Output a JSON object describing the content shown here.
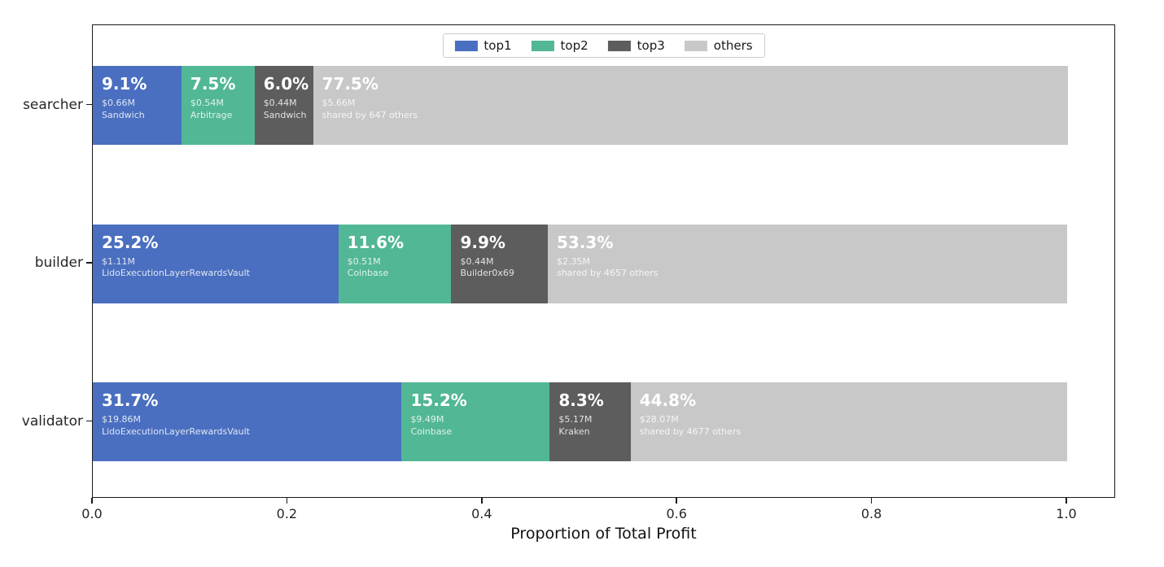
{
  "figure": {
    "xlabel": "Proportion of Total Profit"
  },
  "legend": {
    "items": [
      {
        "label": "top1",
        "color": "#4a6fc0"
      },
      {
        "label": "top2",
        "color": "#52b794"
      },
      {
        "label": "top3",
        "color": "#5d5d5d"
      },
      {
        "label": "others",
        "color": "#c8c8c8"
      }
    ]
  },
  "chart_data": {
    "type": "bar",
    "orientation": "horizontal",
    "stacked": true,
    "title": "",
    "xlabel": "Proportion of Total Profit",
    "xlim": [
      0,
      1.05
    ],
    "grid": false,
    "legend_position": "upper center",
    "x_ticks": [
      0,
      0.2,
      0.4,
      0.6,
      0.8,
      1.0
    ],
    "x_tick_labels": [
      "0.0",
      "0.2",
      "0.4",
      "0.6",
      "0.8",
      "1.0"
    ],
    "categories": [
      "searcher",
      "builder",
      "validator"
    ],
    "series_colors": {
      "top1": "#4a6fc0",
      "top2": "#52b794",
      "top3": "#5d5d5d",
      "others": "#c8c8c8"
    },
    "rows": [
      {
        "category": "searcher",
        "segments": [
          {
            "series": "top1",
            "value": 0.091,
            "percent": "9.1%",
            "amount": "$0.66M",
            "entity": "Sandwich"
          },
          {
            "series": "top2",
            "value": 0.075,
            "percent": "7.5%",
            "amount": "$0.54M",
            "entity": "Arbitrage"
          },
          {
            "series": "top3",
            "value": 0.06,
            "percent": "6.0%",
            "amount": "$0.44M",
            "entity": "Sandwich"
          },
          {
            "series": "others",
            "value": 0.775,
            "percent": "77.5%",
            "amount": "$5.66M",
            "entity": "shared by 647 others"
          }
        ]
      },
      {
        "category": "builder",
        "segments": [
          {
            "series": "top1",
            "value": 0.252,
            "percent": "25.2%",
            "amount": "$1.11M",
            "entity": "LidoExecutionLayerRewardsVault"
          },
          {
            "series": "top2",
            "value": 0.116,
            "percent": "11.6%",
            "amount": "$0.51M",
            "entity": "Coinbase"
          },
          {
            "series": "top3",
            "value": 0.099,
            "percent": "9.9%",
            "amount": "$0.44M",
            "entity": "Builder0x69"
          },
          {
            "series": "others",
            "value": 0.533,
            "percent": "53.3%",
            "amount": "$2.35M",
            "entity": "shared by 4657 others"
          }
        ]
      },
      {
        "category": "validator",
        "segments": [
          {
            "series": "top1",
            "value": 0.317,
            "percent": "31.7%",
            "amount": "$19.86M",
            "entity": "LidoExecutionLayerRewardsVault"
          },
          {
            "series": "top2",
            "value": 0.152,
            "percent": "15.2%",
            "amount": "$9.49M",
            "entity": "Coinbase"
          },
          {
            "series": "top3",
            "value": 0.083,
            "percent": "8.3%",
            "amount": "$5.17M",
            "entity": "Kraken"
          },
          {
            "series": "others",
            "value": 0.448,
            "percent": "44.8%",
            "amount": "$28.07M",
            "entity": "shared by 4677 others"
          }
        ]
      }
    ]
  }
}
